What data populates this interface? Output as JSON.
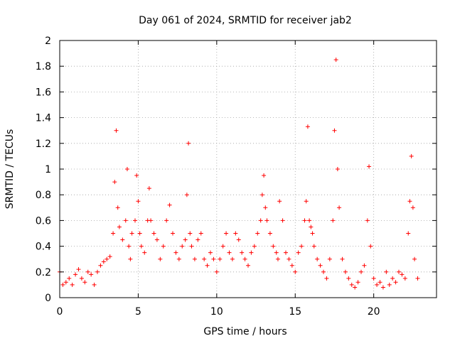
{
  "chart_data": {
    "type": "scatter",
    "title": "Day 061 of 2024, SRMTID for receiver jab2",
    "xlabel": "GPS time / hours",
    "ylabel": "SRMTID / TECUs",
    "xlim": [
      0,
      24
    ],
    "ylim": [
      0,
      2
    ],
    "x_ticks": [
      0,
      5,
      10,
      15,
      20
    ],
    "x_tick_labels": [
      "0",
      "5",
      "10",
      "15",
      "20"
    ],
    "y_ticks": [
      0,
      0.2,
      0.4,
      0.6,
      0.8,
      1,
      1.2,
      1.4,
      1.6,
      1.8,
      2
    ],
    "y_tick_labels": [
      "0",
      "0.2",
      "0.4",
      "0.6",
      "0.8",
      "1",
      "1.2",
      "1.4",
      "1.6",
      "1.8",
      "2"
    ],
    "grid": true,
    "marker": "+",
    "series": [
      {
        "name": "SRMTID",
        "color": "#ff0000",
        "x": [
          0.0,
          0.2,
          0.4,
          0.6,
          0.8,
          1.0,
          1.2,
          1.4,
          1.6,
          1.8,
          2.0,
          2.2,
          2.4,
          2.6,
          2.8,
          3.0,
          3.2,
          3.4,
          3.5,
          3.6,
          3.7,
          3.8,
          4.0,
          4.2,
          4.3,
          4.4,
          4.5,
          4.6,
          4.8,
          4.9,
          5.0,
          5.1,
          5.2,
          5.4,
          5.6,
          5.7,
          5.8,
          6.0,
          6.2,
          6.4,
          6.6,
          6.8,
          7.0,
          7.2,
          7.4,
          7.6,
          7.8,
          8.0,
          8.1,
          8.2,
          8.3,
          8.4,
          8.6,
          8.8,
          9.0,
          9.2,
          9.4,
          9.6,
          9.8,
          10.0,
          10.2,
          10.4,
          10.6,
          10.8,
          11.0,
          11.2,
          11.4,
          11.6,
          11.8,
          12.0,
          12.2,
          12.4,
          12.6,
          12.8,
          12.9,
          13.0,
          13.1,
          13.2,
          13.4,
          13.6,
          13.8,
          13.9,
          14.0,
          14.2,
          14.4,
          14.6,
          14.8,
          15.0,
          15.2,
          15.4,
          15.6,
          15.7,
          15.8,
          15.9,
          16.0,
          16.1,
          16.2,
          16.4,
          16.6,
          16.8,
          17.0,
          17.2,
          17.4,
          17.5,
          17.6,
          17.7,
          17.8,
          18.0,
          18.2,
          18.4,
          18.6,
          18.8,
          19.0,
          19.2,
          19.4,
          19.6,
          19.7,
          19.8,
          20.0,
          20.2,
          20.4,
          20.6,
          20.8,
          21.0,
          21.2,
          21.4,
          21.6,
          21.8,
          22.0,
          22.2,
          22.3,
          22.4,
          22.5,
          22.6,
          22.8
        ],
        "y": [
          0.2,
          0.1,
          0.12,
          0.15,
          0.1,
          0.18,
          0.22,
          0.15,
          0.12,
          0.2,
          0.18,
          0.1,
          0.2,
          0.25,
          0.28,
          0.3,
          0.32,
          0.5,
          0.9,
          1.3,
          0.7,
          0.55,
          0.45,
          0.6,
          1.0,
          0.4,
          0.3,
          0.5,
          0.6,
          0.95,
          0.75,
          0.5,
          0.4,
          0.35,
          0.6,
          0.85,
          0.6,
          0.5,
          0.45,
          0.3,
          0.4,
          0.6,
          0.72,
          0.5,
          0.35,
          0.3,
          0.4,
          0.45,
          0.8,
          1.2,
          0.5,
          0.4,
          0.3,
          0.45,
          0.5,
          0.3,
          0.25,
          0.35,
          0.3,
          0.2,
          0.3,
          0.4,
          0.5,
          0.35,
          0.3,
          0.5,
          0.45,
          0.35,
          0.3,
          0.25,
          0.35,
          0.4,
          0.5,
          0.6,
          0.8,
          0.95,
          0.7,
          0.6,
          0.5,
          0.4,
          0.35,
          0.3,
          0.75,
          0.6,
          0.35,
          0.3,
          0.25,
          0.2,
          0.35,
          0.4,
          0.6,
          0.75,
          1.33,
          0.6,
          0.55,
          0.5,
          0.4,
          0.3,
          0.25,
          0.2,
          0.15,
          0.3,
          0.6,
          1.3,
          1.85,
          1.0,
          0.7,
          0.3,
          0.2,
          0.15,
          0.1,
          0.08,
          0.12,
          0.2,
          0.25,
          0.6,
          1.02,
          0.4,
          0.15,
          0.1,
          0.12,
          0.08,
          0.2,
          0.1,
          0.15,
          0.12,
          0.2,
          0.18,
          0.15,
          0.5,
          0.75,
          1.1,
          0.7,
          0.3,
          0.15
        ]
      }
    ]
  }
}
